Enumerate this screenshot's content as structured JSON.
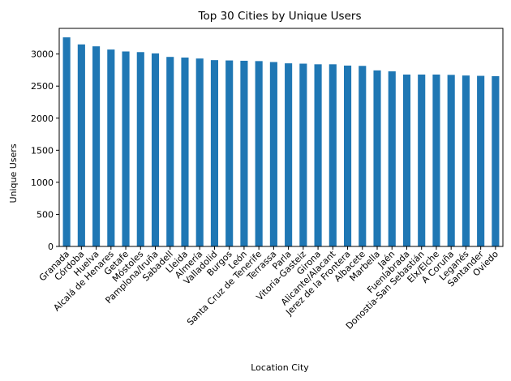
{
  "chart_data": {
    "type": "bar",
    "title": "Top 30 Cities by Unique Users",
    "xlabel": "Location City",
    "ylabel": "Unique Users",
    "ylim": [
      0,
      3400
    ],
    "yticks": [
      0,
      500,
      1000,
      1500,
      2000,
      2500,
      3000
    ],
    "grid": false,
    "legend": "none",
    "bar_color": "#1f77b4",
    "categories": [
      "Granada",
      "Córdoba",
      "Huelva",
      "Alcalá de Henares",
      "Getafe",
      "Móstoles",
      "Pamplona/Iruña",
      "Sabadell",
      "Lleida",
      "Almería",
      "Valladolid",
      "Burgos",
      "León",
      "Santa Cruz de Tenerife",
      "Terrassa",
      "Parla",
      "Vitoria-Gasteiz",
      "Girona",
      "Alicante/Alacant",
      "Jerez de la Frontera",
      "Albacete",
      "Marbella",
      "Jaén",
      "Fuenlabrada",
      "Donostia-San Sebastián",
      "Elx/Elche",
      "A Coruña",
      "Leganés",
      "Santander",
      "Oviedo"
    ],
    "values": [
      3260,
      3150,
      3120,
      3070,
      3040,
      3030,
      3010,
      2955,
      2945,
      2930,
      2905,
      2900,
      2895,
      2890,
      2875,
      2855,
      2850,
      2840,
      2840,
      2820,
      2815,
      2745,
      2730,
      2680,
      2680,
      2680,
      2675,
      2665,
      2660,
      2655
    ]
  }
}
